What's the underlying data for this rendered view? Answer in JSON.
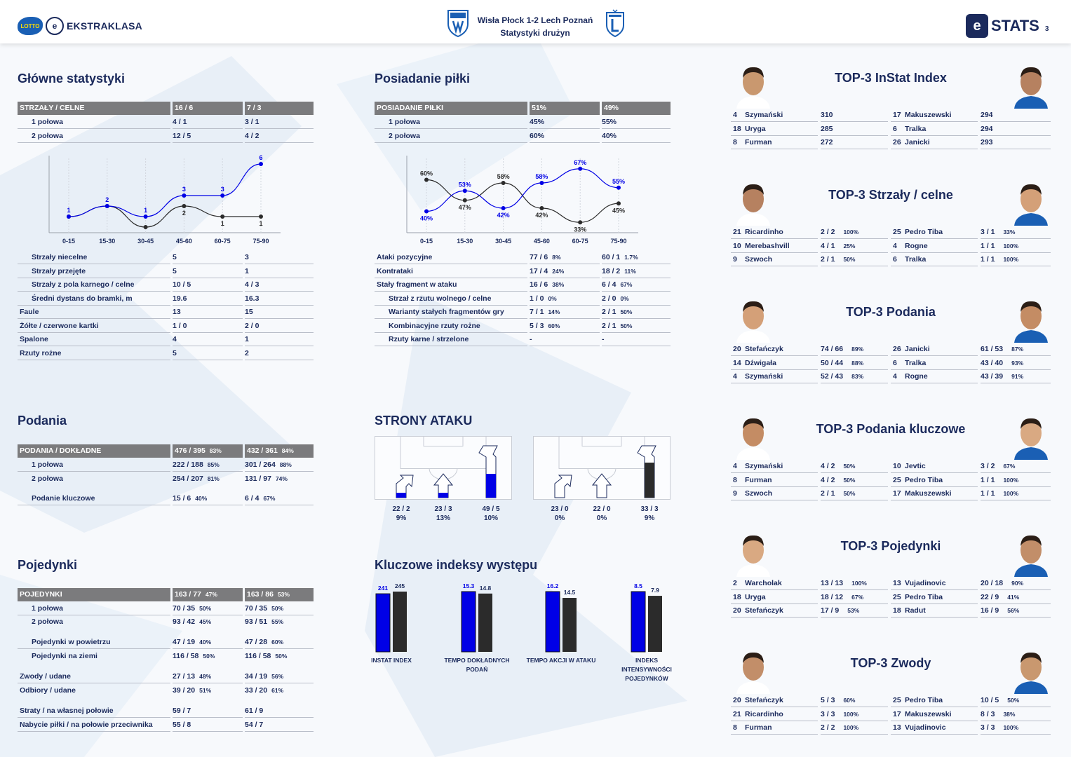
{
  "header": {
    "league_name": "EKSTRAKLASA",
    "lotto": "LOTTO",
    "match": "Wisła Płock 1-2  Lech Poznań",
    "subtitle": "Statystyki drużyn",
    "stats_brand": "STATS",
    "page": "3"
  },
  "main_stats": {
    "title": "Główne statystyki",
    "head": [
      "STRZAŁY / CELNE",
      "16 / 6",
      "7 / 3"
    ],
    "rows": [
      [
        "1 połowa",
        "4 / 1",
        "3 / 1"
      ],
      [
        "2 połowa",
        "12 / 5",
        "4 / 2"
      ]
    ],
    "rows2": [
      [
        "Strzały niecelne",
        "5",
        "3"
      ],
      [
        "Strzały przejęte",
        "5",
        "1"
      ],
      [
        "Strzały z pola karnego / celne",
        "10 / 5",
        "4 / 3"
      ],
      [
        "Średni dystans do bramki, m",
        "19.6",
        "16.3"
      ],
      [
        "Faule",
        "13",
        "15"
      ],
      [
        "Żółte / czerwone kartki",
        "1 / 0",
        "2 / 0"
      ],
      [
        "Spalone",
        "4",
        "1"
      ],
      [
        "Rzuty rożne",
        "5",
        "2"
      ]
    ]
  },
  "possession": {
    "title": "Posiadanie piłki",
    "head": [
      "POSIADANIE PIŁKI",
      "51%",
      "49%"
    ],
    "rows": [
      [
        "1 połowa",
        "45%",
        "55%"
      ],
      [
        "2 połowa",
        "60%",
        "40%"
      ]
    ],
    "rows2": [
      [
        "Ataki pozycyjne",
        "77 / 6",
        "8%",
        "60 / 1",
        "1.7%"
      ],
      [
        "Kontrataki",
        "17 / 4",
        "24%",
        "18 / 2",
        "11%"
      ],
      [
        "Stały fragment w ataku",
        "16 / 6",
        "38%",
        "6 / 4",
        "67%"
      ],
      [
        "Strzał z rzutu wolnego / celne",
        "1 / 0",
        "0%",
        "2 / 0",
        "0%"
      ],
      [
        "Warianty stałych fragmentów gry",
        "7 / 1",
        "14%",
        "2 / 1",
        "50%"
      ],
      [
        "Kombinacyjne rzuty rożne",
        "5 / 3",
        "60%",
        "2 / 1",
        "50%"
      ],
      [
        "Rzuty karne / strzelone",
        "-",
        "",
        "-",
        ""
      ]
    ]
  },
  "passes": {
    "title": "Podania",
    "head": [
      "PODANIA / DOKŁADNE",
      "476 / 395",
      "83%",
      "432 / 361",
      "84%"
    ],
    "rows": [
      [
        "1 połowa",
        "222 / 188",
        "85%",
        "301 / 264",
        "88%"
      ],
      [
        "2 połowa",
        "254 / 207",
        "81%",
        "131 / 97",
        "74%"
      ],
      [
        "Podanie kluczowe",
        "15 / 6",
        "40%",
        "6 / 4",
        "67%"
      ]
    ]
  },
  "duels": {
    "title": "Pojedynki",
    "head": [
      "POJEDYNKI",
      "163 / 77",
      "47%",
      "163 / 86",
      "53%"
    ],
    "rows": [
      [
        "1 połowa",
        "70 / 35",
        "50%",
        "70 / 35",
        "50%"
      ],
      [
        "2 połowa",
        "93 / 42",
        "45%",
        "93 / 51",
        "55%"
      ],
      [
        "Pojedynki w powietrzu",
        "47 / 19",
        "40%",
        "47 / 28",
        "60%"
      ],
      [
        "Pojedynki na ziemi",
        "116 / 58",
        "50%",
        "116 / 58",
        "50%"
      ],
      [
        "Zwody / udane",
        "27 / 13",
        "48%",
        "34 / 19",
        "56%"
      ],
      [
        "Odbiory / udane",
        "39 / 20",
        "51%",
        "33 / 20",
        "61%"
      ],
      [
        "Straty / na własnej połowie",
        "59 / 7",
        "",
        "61 / 9",
        ""
      ],
      [
        "Nabycie piłki / na połowie przeciwnika",
        "55 / 8",
        "",
        "54 / 7",
        ""
      ]
    ]
  },
  "attack_sides": {
    "title": "STRONY ATAKU",
    "home": [
      {
        "label": "22 / 2",
        "pct": "9%",
        "fill": 0.09
      },
      {
        "label": "23 / 3",
        "pct": "13%",
        "fill": 0.13
      },
      {
        "label": "49 / 5",
        "pct": "10%",
        "fill": 0.1
      }
    ],
    "away": [
      {
        "label": "23 / 0",
        "pct": "0%",
        "fill": 0.0
      },
      {
        "label": "22 / 0",
        "pct": "0%",
        "fill": 0.0
      },
      {
        "label": "33 / 3",
        "pct": "9%",
        "fill": 0.09
      }
    ],
    "home_color": "#0000e6",
    "away_color": "#2b2b2b"
  },
  "key_indexes": {
    "title": "Kluczowe indeksy występu",
    "groups": [
      {
        "label": "INSTAT INDEX",
        "home": 241,
        "away": 245,
        "home_label": "241",
        "away_label": "245"
      },
      {
        "label": "TEMPO DOKŁADNYCH PODAŃ",
        "home": 15.3,
        "away": 14.8,
        "home_label": "15.3",
        "away_label": "14.8"
      },
      {
        "label": "TEMPO AKCJI W ATAKU",
        "home": 16.2,
        "away": 14.5,
        "home_label": "16.2",
        "away_label": "14.5"
      },
      {
        "label": "INDEKS INTENSYWNOŚCI POJEDYNKÓW",
        "home": 8.5,
        "away": 7.9,
        "home_label": "8.5",
        "away_label": "7.9"
      }
    ]
  },
  "chart_data": [
    {
      "type": "line",
      "categories": [
        "0-15",
        "15-30",
        "30-45",
        "45-60",
        "60-75",
        "75-90"
      ],
      "series": [
        {
          "values": [
            1,
            2,
            1,
            3,
            3,
            6
          ],
          "color": "#0000e6"
        },
        {
          "values": [
            1,
            2,
            0,
            2,
            1,
            1
          ],
          "color": "#2b2b2b"
        }
      ],
      "point_labels": [
        [
          "1",
          "2",
          "1",
          "3",
          "3",
          "6"
        ],
        [
          "",
          "",
          "",
          "2",
          "1",
          "1"
        ]
      ],
      "ylim": [
        0,
        6
      ]
    },
    {
      "type": "line",
      "categories": [
        "0-15",
        "15-30",
        "30-45",
        "45-60",
        "60-75",
        "75-90"
      ],
      "series": [
        {
          "values": [
            40,
            53,
            42,
            58,
            67,
            55
          ],
          "color": "#0000e6"
        },
        {
          "values": [
            60,
            47,
            58,
            42,
            33,
            45
          ],
          "color": "#2b2b2b"
        }
      ],
      "point_labels": [
        [
          "40%",
          "53%",
          "42%",
          "58%",
          "67%",
          "55%"
        ],
        [
          "60%",
          "47%",
          "58%",
          "42%",
          "33%",
          "45%"
        ]
      ],
      "ylim": [
        30,
        70
      ]
    }
  ],
  "tops": [
    {
      "title": "TOP-3 InStat Index",
      "left": [
        [
          "4",
          "Szymański",
          "310",
          ""
        ],
        [
          "18",
          "Uryga",
          "285",
          ""
        ],
        [
          "8",
          "Furman",
          "272",
          ""
        ]
      ],
      "right": [
        [
          "17",
          "Makuszewski",
          "294",
          ""
        ],
        [
          "6",
          "Tralka",
          "294",
          ""
        ],
        [
          "26",
          "Janicki",
          "293",
          ""
        ]
      ]
    },
    {
      "title": "TOP-3 Strzały / celne",
      "left": [
        [
          "21",
          "Ricardinho",
          "2 / 2",
          "100%"
        ],
        [
          "10",
          "Merebashvill",
          "4 / 1",
          "25%"
        ],
        [
          "9",
          "Szwoch",
          "2 / 1",
          "50%"
        ]
      ],
      "right": [
        [
          "25",
          "Pedro Tiba",
          "3 / 1",
          "33%"
        ],
        [
          "4",
          "Rogne",
          "1 / 1",
          "100%"
        ],
        [
          "6",
          "Tralka",
          "1 / 1",
          "100%"
        ]
      ]
    },
    {
      "title": "TOP-3 Podania",
      "left": [
        [
          "20",
          "Stefańczyk",
          "74 / 66",
          "89%"
        ],
        [
          "14",
          "Dźwigała",
          "50 / 44",
          "88%"
        ],
        [
          "4",
          "Szymański",
          "52 / 43",
          "83%"
        ]
      ],
      "right": [
        [
          "26",
          "Janicki",
          "61 / 53",
          "87%"
        ],
        [
          "6",
          "Tralka",
          "43 / 40",
          "93%"
        ],
        [
          "4",
          "Rogne",
          "43 / 39",
          "91%"
        ]
      ]
    },
    {
      "title": "TOP-3 Podania kluczowe",
      "left": [
        [
          "4",
          "Szymański",
          "4 / 2",
          "50%"
        ],
        [
          "8",
          "Furman",
          "4 / 2",
          "50%"
        ],
        [
          "9",
          "Szwoch",
          "2 / 1",
          "50%"
        ]
      ],
      "right": [
        [
          "10",
          "Jevtic",
          "3 / 2",
          "67%"
        ],
        [
          "25",
          "Pedro Tiba",
          "1 / 1",
          "100%"
        ],
        [
          "17",
          "Makuszewski",
          "1 / 1",
          "100%"
        ]
      ]
    },
    {
      "title": "TOP-3 Pojedynki",
      "left": [
        [
          "2",
          "Warcholak",
          "13 / 13",
          "100%"
        ],
        [
          "18",
          "Uryga",
          "18 / 12",
          "67%"
        ],
        [
          "20",
          "Stefańczyk",
          "17 / 9",
          "53%"
        ]
      ],
      "right": [
        [
          "13",
          "Vujadinovic",
          "20 / 18",
          "90%"
        ],
        [
          "25",
          "Pedro Tiba",
          "22 / 9",
          "41%"
        ],
        [
          "18",
          "Radut",
          "16 / 9",
          "56%"
        ]
      ]
    },
    {
      "title": "TOP-3 Zwody",
      "left": [
        [
          "20",
          "Stefańczyk",
          "5 / 3",
          "60%"
        ],
        [
          "21",
          "Ricardinho",
          "3 / 3",
          "100%"
        ],
        [
          "8",
          "Furman",
          "2 / 2",
          "100%"
        ]
      ],
      "right": [
        [
          "25",
          "Pedro Tiba",
          "10 / 5",
          "50%"
        ],
        [
          "17",
          "Makuszewski",
          "8 / 3",
          "38%"
        ],
        [
          "13",
          "Vujadinovic",
          "3 / 3",
          "100%"
        ]
      ]
    }
  ]
}
